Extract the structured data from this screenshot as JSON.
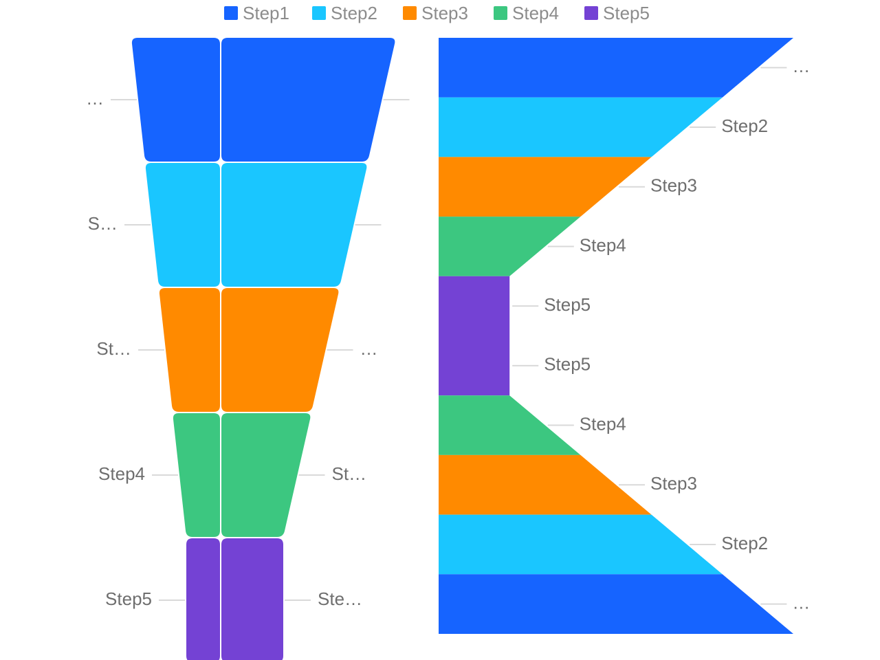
{
  "legend": {
    "items": [
      {
        "label": "Step1",
        "color": "#1664FF"
      },
      {
        "label": "Step2",
        "color": "#1AC6FF"
      },
      {
        "label": "Step3",
        "color": "#FF8A00"
      },
      {
        "label": "Step4",
        "color": "#3CC780"
      },
      {
        "label": "Step5",
        "color": "#7442D4"
      }
    ]
  },
  "chart_data": [
    {
      "type": "funnel",
      "categories": [
        "Step1",
        "Step2",
        "Step3",
        "Step4",
        "Step5"
      ],
      "values": [
        100,
        80,
        60,
        40,
        20
      ],
      "left_labels": [
        "…",
        "S…",
        "St…",
        "Step4",
        "Step5"
      ],
      "right_labels": [
        "",
        "",
        "…",
        "St…",
        "Ste…"
      ]
    },
    {
      "type": "bar",
      "orientation": "horizontal",
      "categories": [
        "Step1",
        "Step2",
        "Step3",
        "Step4",
        "Step5",
        "Step5",
        "Step4",
        "Step3",
        "Step2",
        "Step1"
      ],
      "values": [
        100,
        80,
        60,
        40,
        20,
        20,
        40,
        60,
        80,
        100
      ],
      "labels": [
        "…",
        "Step2",
        "Step3",
        "Step4",
        "Step5",
        "Step5",
        "Step4",
        "Step3",
        "Step2",
        "…"
      ]
    }
  ]
}
